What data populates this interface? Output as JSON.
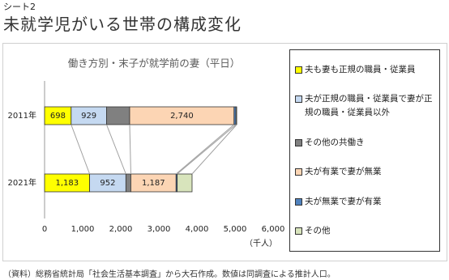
{
  "sheet_label": "シート2",
  "title": "未就学児がいる世帯の構成変化",
  "note": "（資料）総務省統計局「社会生活基本調査」から大石作成。数値は同調査による推計人口。",
  "chart_data": {
    "type": "bar",
    "orientation": "horizontal",
    "stacked": true,
    "title": "働き方別・末子が就学前の妻（平日）",
    "categories": [
      "2011年",
      "2021年"
    ],
    "x_label": "（千人）",
    "xlim": [
      0,
      6000
    ],
    "xticks": [
      0,
      {
        "value": 1000,
        "label": "1,000"
      },
      {
        "value": 2000,
        "label": "2,000"
      },
      {
        "value": 3000,
        "label": "3,000"
      },
      {
        "value": 4000,
        "label": "4,000"
      },
      {
        "value": 5000,
        "label": "5,000"
      },
      {
        "value": 6000,
        "label": "6,000"
      }
    ],
    "legend": "right",
    "series_lines": true,
    "series": [
      {
        "name": "夫も妻も正規の職員・従業員",
        "color": "#ffff00",
        "values": [
          698,
          1183
        ],
        "value_labels": [
          "698",
          "1,183"
        ]
      },
      {
        "name": "夫が正規の職員・従業員で妻が正規の職員・従業員以外",
        "color": "#c5d9f1",
        "values": [
          929,
          952
        ],
        "value_labels": [
          "929",
          "952"
        ]
      },
      {
        "name": "その他の共働き",
        "color": "#808080",
        "values": [
          607,
          130
        ],
        "value_labels": [
          null,
          null
        ]
      },
      {
        "name": "夫が有業で妻が無業",
        "color": "#fcd5b4",
        "values": [
          2740,
          1187
        ],
        "value_labels": [
          "2,740",
          "1,187"
        ]
      },
      {
        "name": "夫が無業で妻が有業",
        "color": "#4f81bd",
        "values": [
          50,
          30
        ],
        "value_labels": [
          null,
          null
        ]
      },
      {
        "name": "その他",
        "color": "#d8e4bc",
        "values": [
          20,
          390
        ],
        "value_labels": [
          null,
          null
        ]
      }
    ]
  }
}
